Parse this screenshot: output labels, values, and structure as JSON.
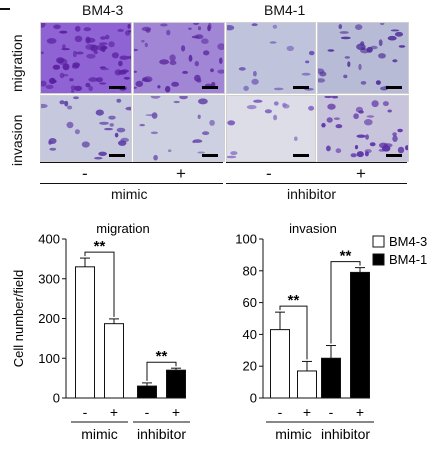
{
  "figure": {
    "cell_lines": [
      "BM4-3",
      "BM4-1"
    ],
    "row_labels": [
      "migration",
      "invasion"
    ],
    "treatment_signs": [
      "-",
      "+",
      "-",
      "+"
    ],
    "groups": [
      "mimic",
      "inhibitor"
    ],
    "micrograph_icon": "crystal-violet-stained-cells"
  },
  "chart_data": [
    {
      "type": "bar",
      "title": "migration",
      "ylabel": "Cell number/field",
      "xlabel": "",
      "ylim": [
        0,
        400
      ],
      "yticks": [
        0,
        100,
        200,
        300,
        400
      ],
      "x_signs": [
        "-",
        "+",
        "-",
        "+"
      ],
      "group_labels": [
        "mimic",
        "inhibitor"
      ],
      "bars": [
        {
          "group": "mimic",
          "sign": "-",
          "cell_line": "BM4-3",
          "value": 330,
          "error": 22
        },
        {
          "group": "mimic",
          "sign": "+",
          "cell_line": "BM4-3",
          "value": 187,
          "error": 12
        },
        {
          "group": "inhibitor",
          "sign": "-",
          "cell_line": "BM4-1",
          "value": 30,
          "error": 8
        },
        {
          "group": "inhibitor",
          "sign": "+",
          "cell_line": "BM4-1",
          "value": 70,
          "error": 5
        }
      ],
      "significance": [
        "**",
        "**"
      ],
      "colors": {
        "BM4-3": "#ffffff",
        "BM4-1": "#000000"
      }
    },
    {
      "type": "bar",
      "title": "invasion",
      "ylabel": "Cell number/field",
      "xlabel": "",
      "ylim": [
        0,
        100
      ],
      "yticks": [
        0,
        20,
        40,
        60,
        80,
        100
      ],
      "x_signs": [
        "-",
        "+",
        "-",
        "+"
      ],
      "group_labels": [
        "mimic",
        "inhibitor"
      ],
      "bars": [
        {
          "group": "mimic",
          "sign": "-",
          "cell_line": "BM4-3",
          "value": 43,
          "error": 11
        },
        {
          "group": "mimic",
          "sign": "+",
          "cell_line": "BM4-3",
          "value": 17,
          "error": 6
        },
        {
          "group": "inhibitor",
          "sign": "-",
          "cell_line": "BM4-1",
          "value": 25,
          "error": 8
        },
        {
          "group": "inhibitor",
          "sign": "+",
          "cell_line": "BM4-1",
          "value": 79,
          "error": 3
        }
      ],
      "significance": [
        "**",
        "**"
      ],
      "legend": {
        "placement": "top-right",
        "entries": [
          {
            "name": "BM4-3",
            "color": "#ffffff"
          },
          {
            "name": "BM4-1",
            "color": "#000000"
          }
        ]
      },
      "colors": {
        "BM4-3": "#ffffff",
        "BM4-1": "#000000"
      }
    }
  ]
}
